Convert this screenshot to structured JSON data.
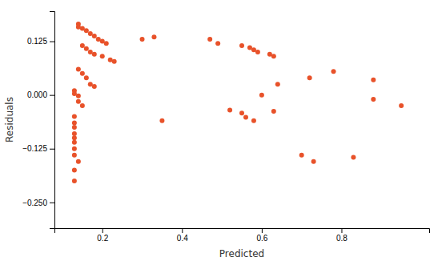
{
  "chart_data": {
    "type": "scatter",
    "xlabel": "Predicted",
    "ylabel": "Residuals",
    "color": "#e8522a",
    "x": [
      0.14,
      0.14,
      0.15,
      0.16,
      0.17,
      0.18,
      0.19,
      0.2,
      0.21,
      0.15,
      0.16,
      0.17,
      0.18,
      0.2,
      0.22,
      0.23,
      0.14,
      0.15,
      0.16,
      0.17,
      0.18,
      0.13,
      0.13,
      0.14,
      0.14,
      0.15,
      0.13,
      0.13,
      0.13,
      0.13,
      0.13,
      0.13,
      0.13,
      0.13,
      0.14,
      0.13,
      0.13,
      0.3,
      0.33,
      0.47,
      0.49,
      0.55,
      0.57,
      0.58,
      0.59,
      0.62,
      0.63,
      0.64,
      0.72,
      0.78,
      0.88,
      0.95,
      0.35,
      0.52,
      0.55,
      0.56,
      0.58,
      0.6,
      0.63,
      0.7,
      0.73,
      0.83,
      0.88
    ],
    "y": [
      0.165,
      0.158,
      0.155,
      0.15,
      0.143,
      0.137,
      0.13,
      0.125,
      0.12,
      0.115,
      0.108,
      0.1,
      0.095,
      0.09,
      0.082,
      0.078,
      0.06,
      0.05,
      0.04,
      0.025,
      0.02,
      0.01,
      0.003,
      -0.002,
      -0.015,
      -0.025,
      -0.05,
      -0.065,
      -0.075,
      -0.09,
      -0.1,
      -0.11,
      -0.125,
      -0.14,
      -0.155,
      -0.175,
      -0.2,
      0.13,
      0.135,
      0.13,
      0.12,
      0.115,
      0.11,
      0.105,
      0.1,
      0.095,
      0.09,
      0.025,
      0.04,
      0.055,
      0.035,
      -0.025,
      -0.06,
      -0.035,
      -0.042,
      -0.052,
      -0.06,
      0,
      -0.038,
      -0.14,
      -0.155,
      -0.145,
      -0.01
    ],
    "xlim": [
      0.08,
      1.02
    ],
    "ylim": [
      -0.31,
      0.195
    ],
    "xticks": [
      0.2,
      0.4,
      0.6,
      0.8
    ],
    "yticks": [
      {
        "value": -0.25,
        "label": "−0.250"
      },
      {
        "value": -0.125,
        "label": "−0.125"
      },
      {
        "value": 0,
        "label": "0.000"
      },
      0.125
    ]
  }
}
